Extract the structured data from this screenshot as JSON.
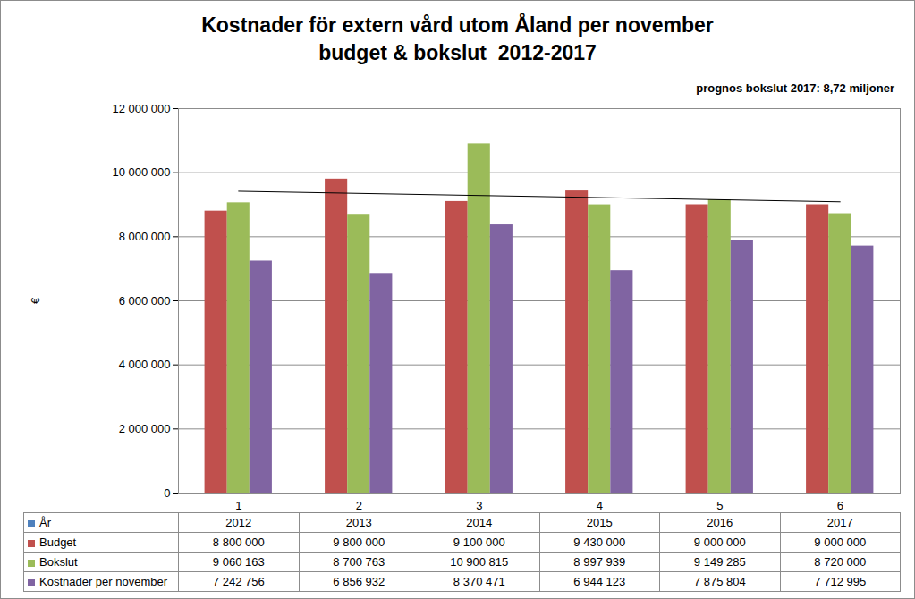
{
  "chart_data": {
    "type": "bar",
    "title": "Kostnader för extern vård utom Åland per november",
    "subtitle": "budget & bokslut  2012-2017",
    "annotation": "prognos bokslut 2017: 8,72 miljoner",
    "y_label": "€",
    "categories": [
      "1",
      "2",
      "3",
      "4",
      "5",
      "6"
    ],
    "table": {
      "name": "År",
      "color": "#4f81bd",
      "labels": [
        "2012",
        "2013",
        "2014",
        "2015",
        "2016",
        "2017"
      ]
    },
    "series": [
      {
        "name": "Budget",
        "color": "#c0504d",
        "values": [
          8800000,
          9800000,
          9100000,
          9430000,
          9000000,
          9000000
        ],
        "value_labels": [
          "8 800 000",
          "9 800 000",
          "9 100 000",
          "9 430 000",
          "9 000 000",
          "9 000 000"
        ]
      },
      {
        "name": "Bokslut",
        "color": "#9bbb59",
        "values": [
          9060163,
          8700763,
          10900815,
          8997939,
          9149285,
          8720000
        ],
        "value_labels": [
          "9 060 163",
          "8 700 763",
          "10 900 815",
          "8 997 939",
          "9 149 285",
          "8 720 000"
        ]
      },
      {
        "name": "Kostnader per november",
        "color": "#8064a2",
        "values": [
          7242756,
          6856932,
          8370471,
          6944123,
          7875804,
          7712995
        ],
        "value_labels": [
          "7 242 756",
          "6 856 932",
          "8 370 471",
          "6 944 123",
          "7 875 804",
          "7 712 995"
        ]
      }
    ],
    "trendline": {
      "color": "#000000",
      "values": [
        9420000,
        9090000
      ]
    },
    "ylim": [
      0,
      12000000
    ],
    "yticks": [
      0,
      {
        "value": 2000000,
        "label": "2 000 000"
      },
      {
        "value": 4000000,
        "label": "4 000 000"
      },
      {
        "value": 6000000,
        "label": "6 000 000"
      },
      {
        "value": 8000000,
        "label": "8 000 000"
      },
      {
        "value": 10000000,
        "label": "10 000 000"
      },
      {
        "value": 12000000,
        "label": "12 000 000"
      }
    ],
    "grid": true
  }
}
